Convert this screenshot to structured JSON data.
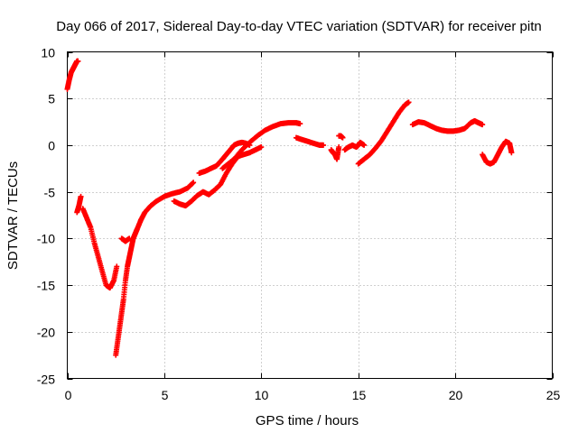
{
  "chart_data": {
    "type": "scatter",
    "title": "Day 066 of 2017, Sidereal Day-to-day VTEC variation (SDTVAR) for receiver pitn",
    "xlabel": "GPS time / hours",
    "ylabel": "SDTVAR / TECUs",
    "xlim": [
      0,
      25
    ],
    "ylim": [
      -25,
      10
    ],
    "xticks": [
      0,
      5,
      10,
      15,
      20,
      25
    ],
    "yticks": [
      -25,
      -20,
      -15,
      -10,
      -5,
      0,
      5,
      10
    ],
    "grid": true,
    "marker": "plus",
    "color": "#ff0000",
    "series": [
      {
        "name": "SDTVAR",
        "segments": [
          {
            "x": [
              0.0,
              0.1,
              0.2,
              0.3,
              0.4,
              0.5,
              0.55
            ],
            "y": [
              6.0,
              7.0,
              7.8,
              8.2,
              8.6,
              9.0,
              9.0
            ]
          },
          {
            "x": [
              0.5,
              0.6,
              0.7
            ],
            "y": [
              -7.2,
              -6.5,
              -5.5
            ]
          },
          {
            "x": [
              0.8,
              1.0,
              1.2,
              1.4,
              1.6,
              1.8,
              2.0,
              2.2,
              2.4,
              2.55
            ],
            "y": [
              -6.8,
              -7.8,
              -8.8,
              -10.5,
              -12.0,
              -13.5,
              -15.0,
              -15.3,
              -14.5,
              -13.0
            ]
          },
          {
            "x": [
              2.5,
              2.6,
              2.7,
              2.8,
              2.9,
              3.0,
              3.1,
              3.2,
              3.3,
              3.4,
              3.5,
              3.6,
              3.8
            ],
            "y": [
              -22.5,
              -21.0,
              -19.5,
              -18.0,
              -16.5,
              -14.5,
              -13.0,
              -12.0,
              -11.0,
              -10.0,
              -9.5,
              -9.0,
              -8.0
            ]
          },
          {
            "x": [
              2.8,
              3.0,
              3.2
            ],
            "y": [
              -10.0,
              -10.3,
              -10.0
            ]
          },
          {
            "x": [
              3.8,
              4.0,
              4.3,
              4.6,
              5.0,
              5.4,
              5.8,
              6.2,
              6.5
            ],
            "y": [
              -8.0,
              -7.2,
              -6.5,
              -6.0,
              -5.5,
              -5.2,
              -5.0,
              -4.6,
              -4.0
            ]
          },
          {
            "x": [
              5.5,
              5.8,
              6.1,
              6.4,
              6.7,
              7.0,
              7.3,
              7.6,
              7.9,
              8.2,
              8.5,
              8.8,
              9.1,
              9.4,
              9.7,
              10.0
            ],
            "y": [
              -6.0,
              -6.3,
              -6.5,
              -6.0,
              -5.4,
              -5.0,
              -5.3,
              -4.8,
              -4.2,
              -3.0,
              -2.0,
              -1.2,
              -1.0,
              -0.8,
              -0.5,
              -0.2
            ]
          },
          {
            "x": [
              6.8,
              7.1,
              7.4,
              7.7,
              8.0,
              8.2,
              8.4,
              8.6,
              8.8,
              9.0,
              9.2,
              9.4
            ],
            "y": [
              -3.0,
              -2.8,
              -2.5,
              -2.2,
              -1.5,
              -1.0,
              -0.5,
              0.0,
              0.2,
              0.3,
              0.2,
              0.0
            ]
          },
          {
            "x": [
              8.0,
              8.3,
              8.6,
              9.0,
              9.4,
              9.8,
              10.2,
              10.6,
              11.0,
              11.4,
              11.8,
              12.0
            ],
            "y": [
              -2.5,
              -2.0,
              -1.5,
              -0.5,
              0.3,
              1.0,
              1.6,
              2.0,
              2.3,
              2.4,
              2.4,
              2.3
            ]
          },
          {
            "x": [
              11.8,
              12.1,
              12.4,
              12.7,
              13.0,
              13.2
            ],
            "y": [
              0.8,
              0.6,
              0.4,
              0.2,
              0.0,
              0.0
            ]
          },
          {
            "x": [
              13.6,
              13.7,
              13.8,
              13.9,
              14.0
            ],
            "y": [
              -0.5,
              -0.8,
              -1.0,
              -1.5,
              -0.2
            ]
          },
          {
            "x": [
              14.0,
              14.1,
              14.2
            ],
            "y": [
              1.0,
              1.0,
              0.8
            ]
          },
          {
            "x": [
              14.3,
              14.5,
              14.7,
              14.9,
              15.0,
              15.1,
              15.3
            ],
            "y": [
              -0.5,
              -0.2,
              0.0,
              -0.2,
              0.0,
              0.3,
              0.0
            ]
          },
          {
            "x": [
              15.0,
              15.3,
              15.6,
              15.9,
              16.2,
              16.5,
              16.8,
              17.1,
              17.4,
              17.6
            ],
            "y": [
              -2.0,
              -1.5,
              -1.0,
              -0.3,
              0.5,
              1.5,
              2.5,
              3.5,
              4.3,
              4.6
            ]
          },
          {
            "x": [
              17.8,
              18.1,
              18.4,
              18.7,
              19.0,
              19.3,
              19.6,
              19.9,
              20.2,
              20.5,
              20.8,
              21.0,
              21.2,
              21.4
            ],
            "y": [
              2.2,
              2.5,
              2.4,
              2.1,
              1.8,
              1.6,
              1.5,
              1.5,
              1.6,
              1.8,
              2.4,
              2.6,
              2.4,
              2.2
            ]
          },
          {
            "x": [
              21.4,
              21.6,
              21.8,
              22.0,
              22.2,
              22.4,
              22.6,
              22.8,
              22.9
            ],
            "y": [
              -1.0,
              -1.8,
              -2.0,
              -1.8,
              -1.0,
              -0.2,
              0.4,
              0.2,
              -0.8
            ]
          }
        ]
      }
    ]
  }
}
